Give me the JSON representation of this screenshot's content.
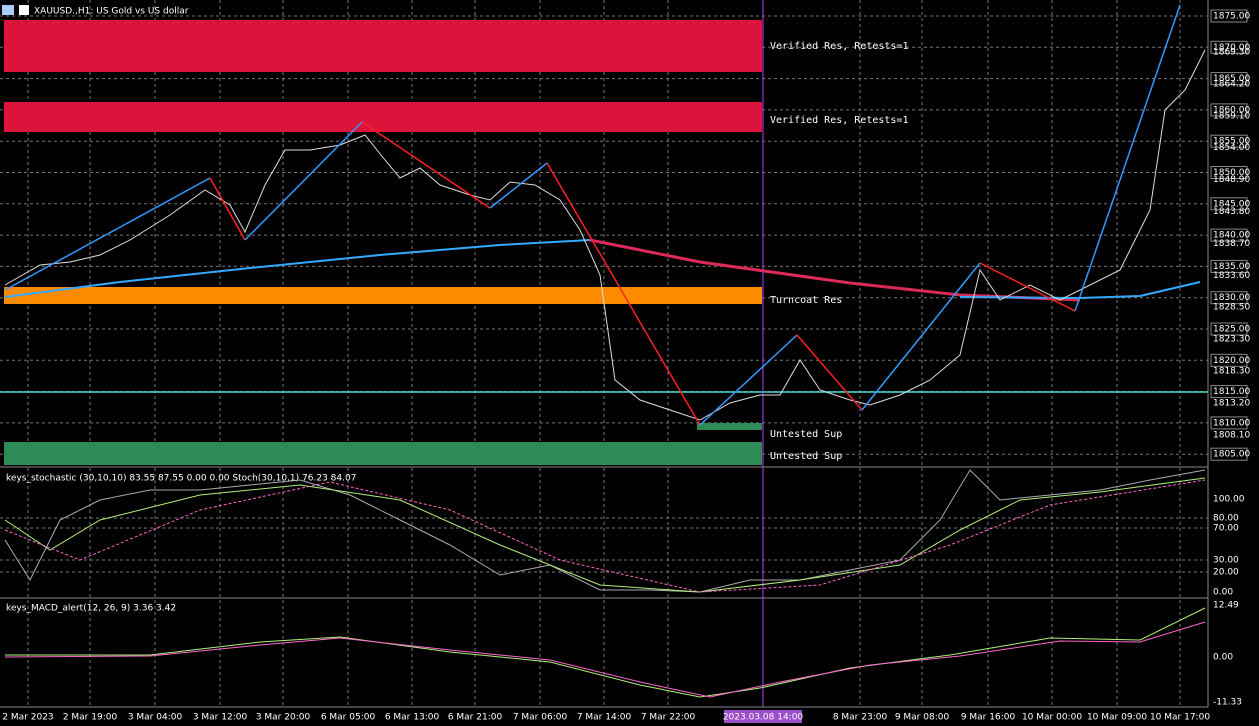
{
  "header": {
    "symbol": "XAUUSD.,H1: US Gold vs US dollar"
  },
  "zones": {
    "res1": "Verified Res, Retests=1",
    "res2": "Verified Res, Retests=1",
    "turncoat": "Turncoat Res",
    "sup1": "Untested Sup",
    "sup2": "Untested Sup"
  },
  "price_axis": {
    "levels": [
      "1875.00",
      "1870.00",
      "1865.00",
      "1860.00",
      "1855.00",
      "1850.00",
      "1845.00",
      "1840.00",
      "1835.00",
      "1830.00",
      "1825.00",
      "1820.00",
      "1815.00",
      "1810.00",
      "1805.00"
    ],
    "ticks": [
      "1869.30",
      "1864.20",
      "1859.10",
      "1854.00",
      "1848.90",
      "1843.80",
      "1838.70",
      "1833.60",
      "1828.50",
      "1823.30",
      "1818.30",
      "1813.20",
      "1808.10"
    ]
  },
  "stochastic": {
    "label": "keys_stochastic (30,10,10) 83.55 87.55 0.00 0.00 Stoch(30,10,1) 76.23 84.07",
    "axis": [
      "100.00",
      "80.00",
      "70.00",
      "30.00",
      "20.00",
      "0.00"
    ]
  },
  "macd": {
    "label": "keys_MACD_alert(12, 26, 9) 3.36 3.42",
    "axis": [
      "12.49",
      "0.00",
      "-11.33"
    ]
  },
  "time_axis": {
    "labels": [
      "2 Mar 2023",
      "2 Mar 19:00",
      "3 Mar 04:00",
      "3 Mar 12:00",
      "3 Mar 20:00",
      "6 Mar 05:00",
      "6 Mar 13:00",
      "6 Mar 21:00",
      "7 Mar 06:00",
      "7 Mar 14:00",
      "7 Mar 22:00",
      "8 Mar 23:00",
      "9 Mar 08:00",
      "9 Mar 16:00",
      "10 Mar 00:00",
      "10 Mar 09:00",
      "10 Mar 17:00"
    ],
    "crosshair": "2023.03.08 14:00"
  }
}
